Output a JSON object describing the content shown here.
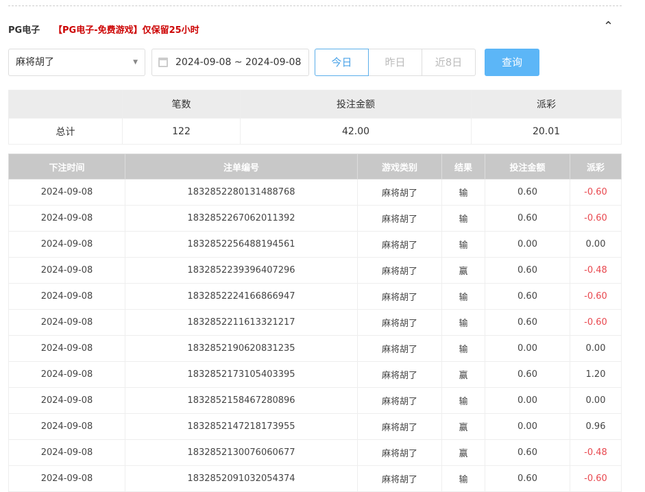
{
  "section": {
    "title": "PG电子",
    "notice": "【PG电子-免费游戏】仅保留25小时",
    "collapse_icon": "chevron-up-icon"
  },
  "filters": {
    "game": "麻将胡了",
    "date_range": "2024-09-08 ~ 2024-09-08",
    "quick": [
      "今日",
      "昨日",
      "近8日"
    ],
    "active_quick": "今日",
    "query_label": "查询"
  },
  "summary": {
    "headers": [
      "",
      "笔数",
      "投注金额",
      "派彩"
    ],
    "row": [
      "总计",
      "122",
      "42.00",
      "20.01"
    ]
  },
  "colors": {
    "accent": "#5cb6f7",
    "negative": "#e8474e",
    "notice": "#cc0000"
  },
  "records": {
    "headers": [
      "下注时间",
      "注单编号",
      "游戏类别",
      "结果",
      "投注金额",
      "派彩"
    ],
    "rows": [
      [
        "2024-09-08",
        "1832852280131488768",
        "麻将胡了",
        "输",
        "0.60",
        "-0.60"
      ],
      [
        "2024-09-08",
        "1832852267062011392",
        "麻将胡了",
        "输",
        "0.60",
        "-0.60"
      ],
      [
        "2024-09-08",
        "1832852256488194561",
        "麻将胡了",
        "输",
        "0.00",
        "0.00"
      ],
      [
        "2024-09-08",
        "1832852239396407296",
        "麻将胡了",
        "赢",
        "0.60",
        "-0.48"
      ],
      [
        "2024-09-08",
        "1832852224166866947",
        "麻将胡了",
        "输",
        "0.60",
        "-0.60"
      ],
      [
        "2024-09-08",
        "1832852211613321217",
        "麻将胡了",
        "输",
        "0.60",
        "-0.60"
      ],
      [
        "2024-09-08",
        "1832852190620831235",
        "麻将胡了",
        "输",
        "0.00",
        "0.00"
      ],
      [
        "2024-09-08",
        "1832852173105403395",
        "麻将胡了",
        "赢",
        "0.60",
        "1.20"
      ],
      [
        "2024-09-08",
        "1832852158467280896",
        "麻将胡了",
        "输",
        "0.00",
        "0.00"
      ],
      [
        "2024-09-08",
        "1832852147218173955",
        "麻将胡了",
        "赢",
        "0.00",
        "0.96"
      ],
      [
        "2024-09-08",
        "1832852130076060677",
        "麻将胡了",
        "赢",
        "0.60",
        "-0.48"
      ],
      [
        "2024-09-08",
        "1832852091032054374",
        "麻将胡了",
        "输",
        "0.60",
        "-0.60"
      ]
    ]
  }
}
